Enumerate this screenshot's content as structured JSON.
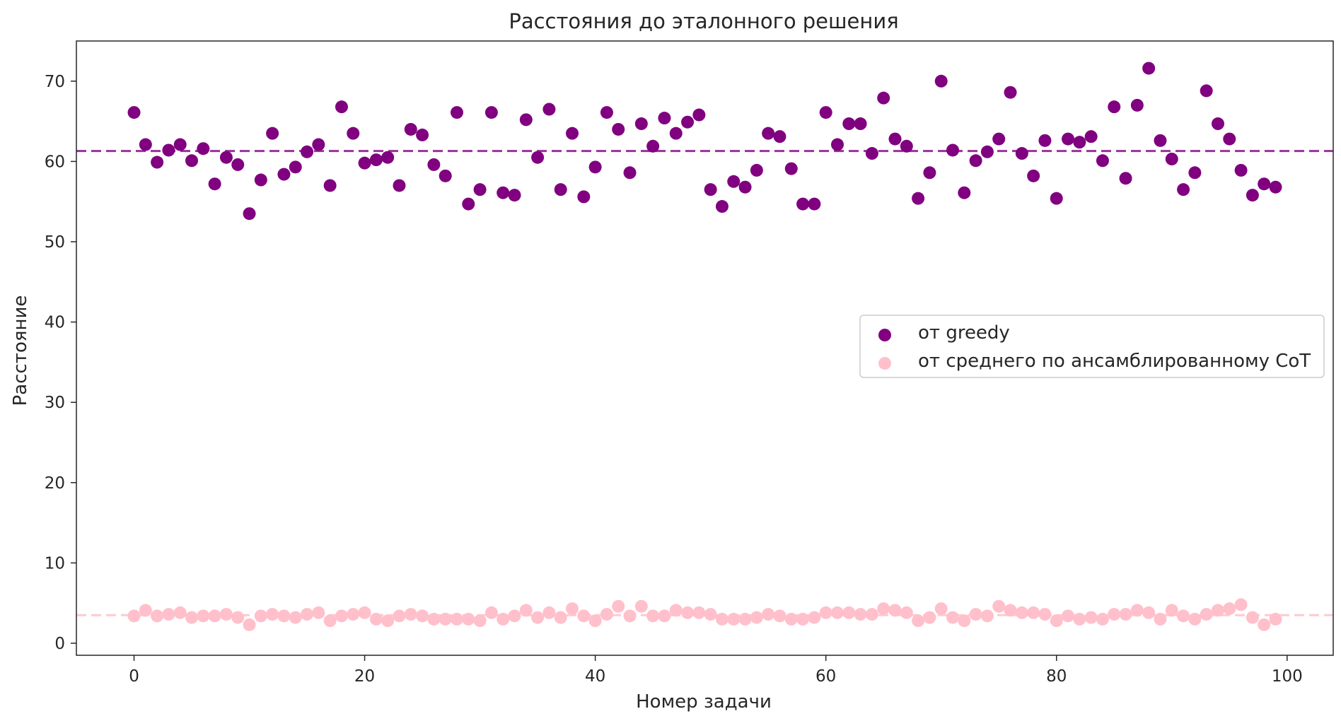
{
  "chart_data": {
    "type": "scatter",
    "title": "Расстояния до эталонного решения",
    "xlabel": "Номер задачи",
    "ylabel": "Расстояние",
    "xlim": [
      -5,
      104
    ],
    "ylim": [
      -1.5,
      75
    ],
    "x_ticks": [
      0,
      20,
      40,
      60,
      80,
      100
    ],
    "y_ticks": [
      0,
      10,
      20,
      30,
      40,
      50,
      60,
      70
    ],
    "grid": false,
    "legend_position": "center-right",
    "series": [
      {
        "name": "от greedy",
        "color": "#800080",
        "mean": 61.3,
        "x": [
          0,
          1,
          2,
          3,
          4,
          5,
          6,
          7,
          8,
          9,
          10,
          11,
          12,
          13,
          14,
          15,
          16,
          17,
          18,
          19,
          20,
          21,
          22,
          23,
          24,
          25,
          26,
          27,
          28,
          29,
          30,
          31,
          32,
          33,
          34,
          35,
          36,
          37,
          38,
          39,
          40,
          41,
          42,
          43,
          44,
          45,
          46,
          47,
          48,
          49,
          50,
          51,
          52,
          53,
          54,
          55,
          56,
          57,
          58,
          59,
          60,
          61,
          62,
          63,
          64,
          65,
          66,
          67,
          68,
          69,
          70,
          71,
          72,
          73,
          74,
          75,
          76,
          77,
          78,
          79,
          80,
          81,
          82,
          83,
          84,
          85,
          86,
          87,
          88,
          89,
          90,
          91,
          92,
          93,
          94,
          95,
          96,
          97,
          98,
          99
        ],
        "y": [
          66.1,
          62.1,
          59.9,
          61.4,
          62.1,
          60.1,
          61.6,
          57.2,
          60.5,
          59.6,
          53.5,
          57.7,
          63.5,
          58.4,
          59.3,
          61.2,
          62.1,
          57.0,
          66.8,
          63.5,
          59.8,
          60.2,
          60.5,
          57.0,
          64.0,
          63.3,
          59.6,
          58.2,
          66.1,
          54.7,
          56.5,
          66.1,
          56.1,
          55.8,
          65.2,
          60.5,
          66.5,
          56.5,
          63.5,
          55.6,
          59.3,
          66.1,
          64.0,
          58.6,
          64.7,
          61.9,
          65.4,
          63.5,
          64.9,
          65.8,
          56.5,
          54.4,
          57.5,
          56.8,
          58.9,
          63.5,
          63.1,
          59.1,
          54.7,
          54.7,
          66.1,
          62.1,
          64.7,
          64.7,
          61.0,
          67.9,
          62.8,
          61.9,
          55.4,
          58.6,
          70.0,
          61.4,
          56.1,
          60.1,
          61.2,
          62.8,
          68.6,
          61.0,
          58.2,
          62.6,
          55.4,
          62.8,
          62.4,
          63.1,
          60.1,
          66.8,
          57.9,
          67.0,
          71.6,
          62.6,
          60.3,
          56.5,
          58.6,
          68.8,
          64.7,
          62.8,
          58.9,
          55.8,
          57.2,
          56.8
        ]
      },
      {
        "name": "от среднего по ансамблированному CoT",
        "color": "#FFC0CB",
        "mean": 3.5,
        "x": [
          0,
          1,
          2,
          3,
          4,
          5,
          6,
          7,
          8,
          9,
          10,
          11,
          12,
          13,
          14,
          15,
          16,
          17,
          18,
          19,
          20,
          21,
          22,
          23,
          24,
          25,
          26,
          27,
          28,
          29,
          30,
          31,
          32,
          33,
          34,
          35,
          36,
          37,
          38,
          39,
          40,
          41,
          42,
          43,
          44,
          45,
          46,
          47,
          48,
          49,
          50,
          51,
          52,
          53,
          54,
          55,
          56,
          57,
          58,
          59,
          60,
          61,
          62,
          63,
          64,
          65,
          66,
          67,
          68,
          69,
          70,
          71,
          72,
          73,
          74,
          75,
          76,
          77,
          78,
          79,
          80,
          81,
          82,
          83,
          84,
          85,
          86,
          87,
          88,
          89,
          90,
          91,
          92,
          93,
          94,
          95,
          96,
          97,
          98,
          99
        ],
        "y": [
          3.4,
          4.1,
          3.4,
          3.6,
          3.8,
          3.2,
          3.4,
          3.4,
          3.6,
          3.2,
          2.3,
          3.4,
          3.6,
          3.4,
          3.2,
          3.6,
          3.8,
          2.8,
          3.4,
          3.6,
          3.8,
          3.0,
          2.8,
          3.4,
          3.6,
          3.4,
          3.0,
          3.0,
          3.0,
          3.0,
          2.8,
          3.8,
          3.0,
          3.4,
          4.1,
          3.2,
          3.8,
          3.2,
          4.3,
          3.4,
          2.8,
          3.6,
          4.6,
          3.4,
          4.6,
          3.4,
          3.4,
          4.1,
          3.8,
          3.8,
          3.6,
          3.0,
          3.0,
          3.0,
          3.2,
          3.6,
          3.4,
          3.0,
          3.0,
          3.2,
          3.8,
          3.8,
          3.8,
          3.6,
          3.6,
          4.3,
          4.1,
          3.8,
          2.8,
          3.2,
          4.3,
          3.2,
          2.8,
          3.6,
          3.4,
          4.6,
          4.1,
          3.8,
          3.8,
          3.6,
          2.8,
          3.4,
          3.0,
          3.2,
          3.0,
          3.6,
          3.6,
          4.1,
          3.8,
          3.0,
          4.1,
          3.4,
          3.0,
          3.6,
          4.1,
          4.3,
          4.8,
          3.2,
          2.3,
          3.0
        ]
      }
    ]
  }
}
